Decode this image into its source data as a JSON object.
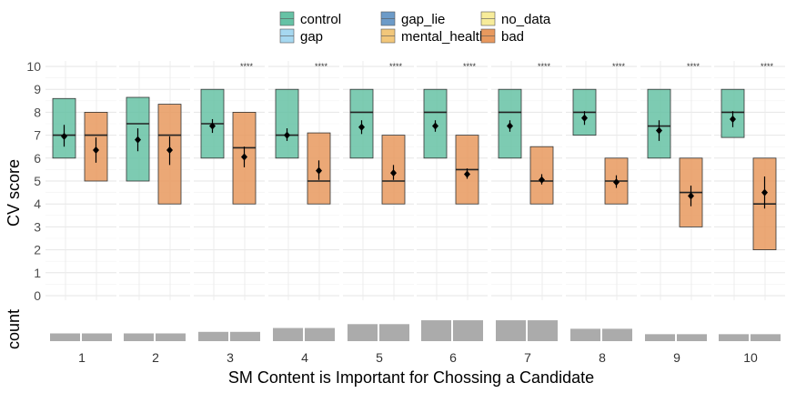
{
  "chart_data": {
    "type": "box",
    "xlabel": "SM Content is Important for Chossing a Candidate",
    "ylabel": "CV score",
    "count_label": "count",
    "ylim": [
      0,
      10
    ],
    "yticks": [
      "0",
      "1",
      "2",
      "3",
      "4",
      "5",
      "6",
      "7",
      "8",
      "9",
      "10"
    ],
    "categories": [
      "1",
      "2",
      "3",
      "4",
      "5",
      "6",
      "7",
      "8",
      "9",
      "10"
    ],
    "legend": {
      "position": "top",
      "entries": [
        {
          "name": "control",
          "color": "#66C2A5"
        },
        {
          "name": "gap",
          "color": "#A6D8F0"
        },
        {
          "name": "gap_lie",
          "color": "#6C9BC8"
        },
        {
          "name": "mental_health",
          "color": "#F2C77A"
        },
        {
          "name": "no_data",
          "color": "#F7EC9A"
        },
        {
          "name": "bad",
          "color": "#E8995E"
        }
      ]
    },
    "series": [
      {
        "name": "control",
        "color": "#66C2A5",
        "q1": [
          6,
          5,
          6,
          6,
          6,
          6,
          6,
          7,
          6,
          6.9
        ],
        "median": [
          7,
          7.5,
          7.5,
          7,
          8,
          8,
          8,
          8,
          7.4,
          8
        ],
        "q3": [
          8.6,
          8.65,
          9,
          9,
          9,
          9,
          9,
          9,
          9,
          9
        ],
        "mean": [
          6.95,
          6.8,
          7.4,
          7.0,
          7.35,
          7.4,
          7.4,
          7.75,
          7.2,
          7.7
        ],
        "ci_low": [
          6.5,
          6.3,
          7.1,
          6.75,
          7.05,
          7.15,
          7.15,
          7.45,
          6.75,
          7.35
        ],
        "ci_high": [
          7.45,
          7.3,
          7.7,
          7.3,
          7.65,
          7.65,
          7.65,
          8.05,
          7.65,
          8.05
        ]
      },
      {
        "name": "bad",
        "color": "#E8995E",
        "q1": [
          5,
          4,
          4,
          4,
          4,
          4,
          4,
          4,
          3,
          2
        ],
        "median": [
          7,
          7,
          6.45,
          5,
          5,
          5.5,
          5,
          5,
          4.5,
          4
        ],
        "q3": [
          8,
          8.35,
          8,
          7.1,
          7,
          7,
          6.5,
          6,
          6,
          6
        ],
        "mean": [
          6.35,
          6.35,
          6.05,
          5.45,
          5.35,
          5.3,
          5.05,
          4.95,
          4.35,
          4.5
        ],
        "ci_low": [
          5.8,
          5.7,
          5.6,
          5.05,
          5.05,
          5.1,
          4.85,
          4.7,
          3.9,
          3.8
        ],
        "ci_high": [
          6.9,
          6.95,
          6.5,
          5.9,
          5.7,
          5.55,
          5.3,
          5.25,
          4.8,
          5.2
        ]
      }
    ],
    "significance": [
      "",
      "",
      "****",
      "****",
      "****",
      "****",
      "****",
      "****",
      "****",
      "****"
    ],
    "counts": [
      1,
      1,
      1.2,
      1.7,
      2.2,
      2.7,
      2.7,
      1.6,
      0.9,
      0.9
    ]
  }
}
